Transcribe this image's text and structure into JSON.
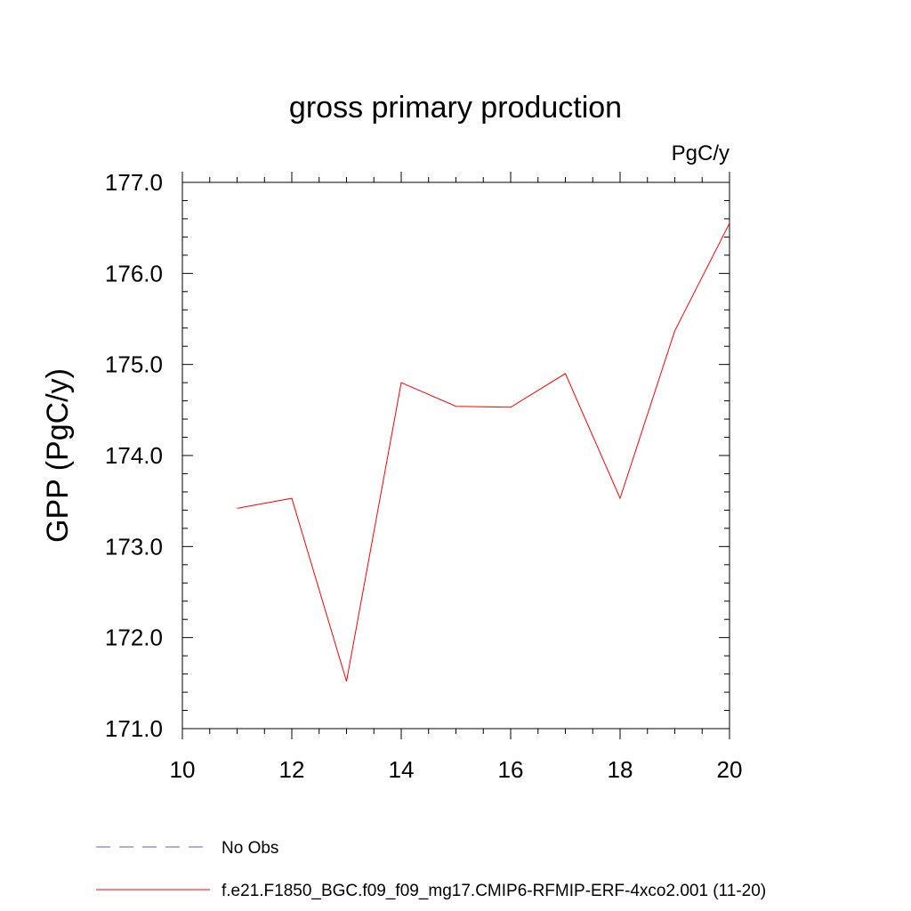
{
  "chart_data": {
    "type": "line",
    "title": "gross primary production",
    "units_label": "PgC/y",
    "ylabel": "GPP  (PgC/y)",
    "xlabel": "",
    "xlim": [
      10,
      20
    ],
    "ylim": [
      171.0,
      177.0
    ],
    "x_ticks": [
      10,
      12,
      14,
      16,
      18,
      20
    ],
    "y_ticks": [
      "171.0",
      "172.0",
      "173.0",
      "174.0",
      "175.0",
      "176.0",
      "177.0"
    ],
    "series": [
      {
        "name": "f.e21.F1850_BGC.f09_f09_mg17.CMIP6-RFMIP-ERF-4xco2.001 (11-20)",
        "color": "#ff0000",
        "dash": "solid",
        "x": [
          11,
          12,
          13,
          14,
          15,
          16,
          17,
          18,
          19,
          20
        ],
        "y": [
          173.42,
          173.53,
          171.52,
          174.8,
          174.54,
          174.53,
          174.9,
          173.53,
          175.37,
          176.55
        ]
      }
    ],
    "legend": [
      {
        "label": "No Obs",
        "color": "#6a5acd",
        "dash": "dashed"
      },
      {
        "label": "f.e21.F1850_BGC.f09_f09_mg17.CMIP6-RFMIP-ERF-4xco2.001 (11-20)",
        "color": "#ff0000",
        "dash": "solid"
      }
    ]
  }
}
